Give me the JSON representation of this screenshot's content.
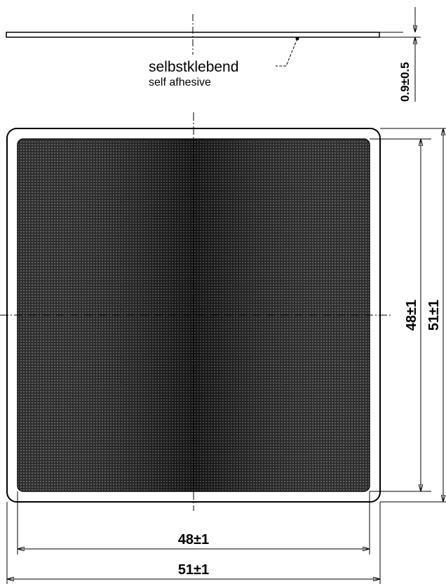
{
  "side_view": {
    "adhesive_label_de": "selbstklebend",
    "adhesive_label_en": "self afhesive",
    "thickness_dimension": "0.9±0.5"
  },
  "front_view": {
    "inner_width_dimension": "48±1",
    "outer_width_dimension": "51±1",
    "inner_height_dimension": "48±1",
    "outer_height_dimension": "51±1"
  },
  "colors": {
    "line": "#000000",
    "mesh_dark": "#1a1a1a",
    "mesh_light": "#5a5a5a",
    "background": "#ffffff"
  }
}
